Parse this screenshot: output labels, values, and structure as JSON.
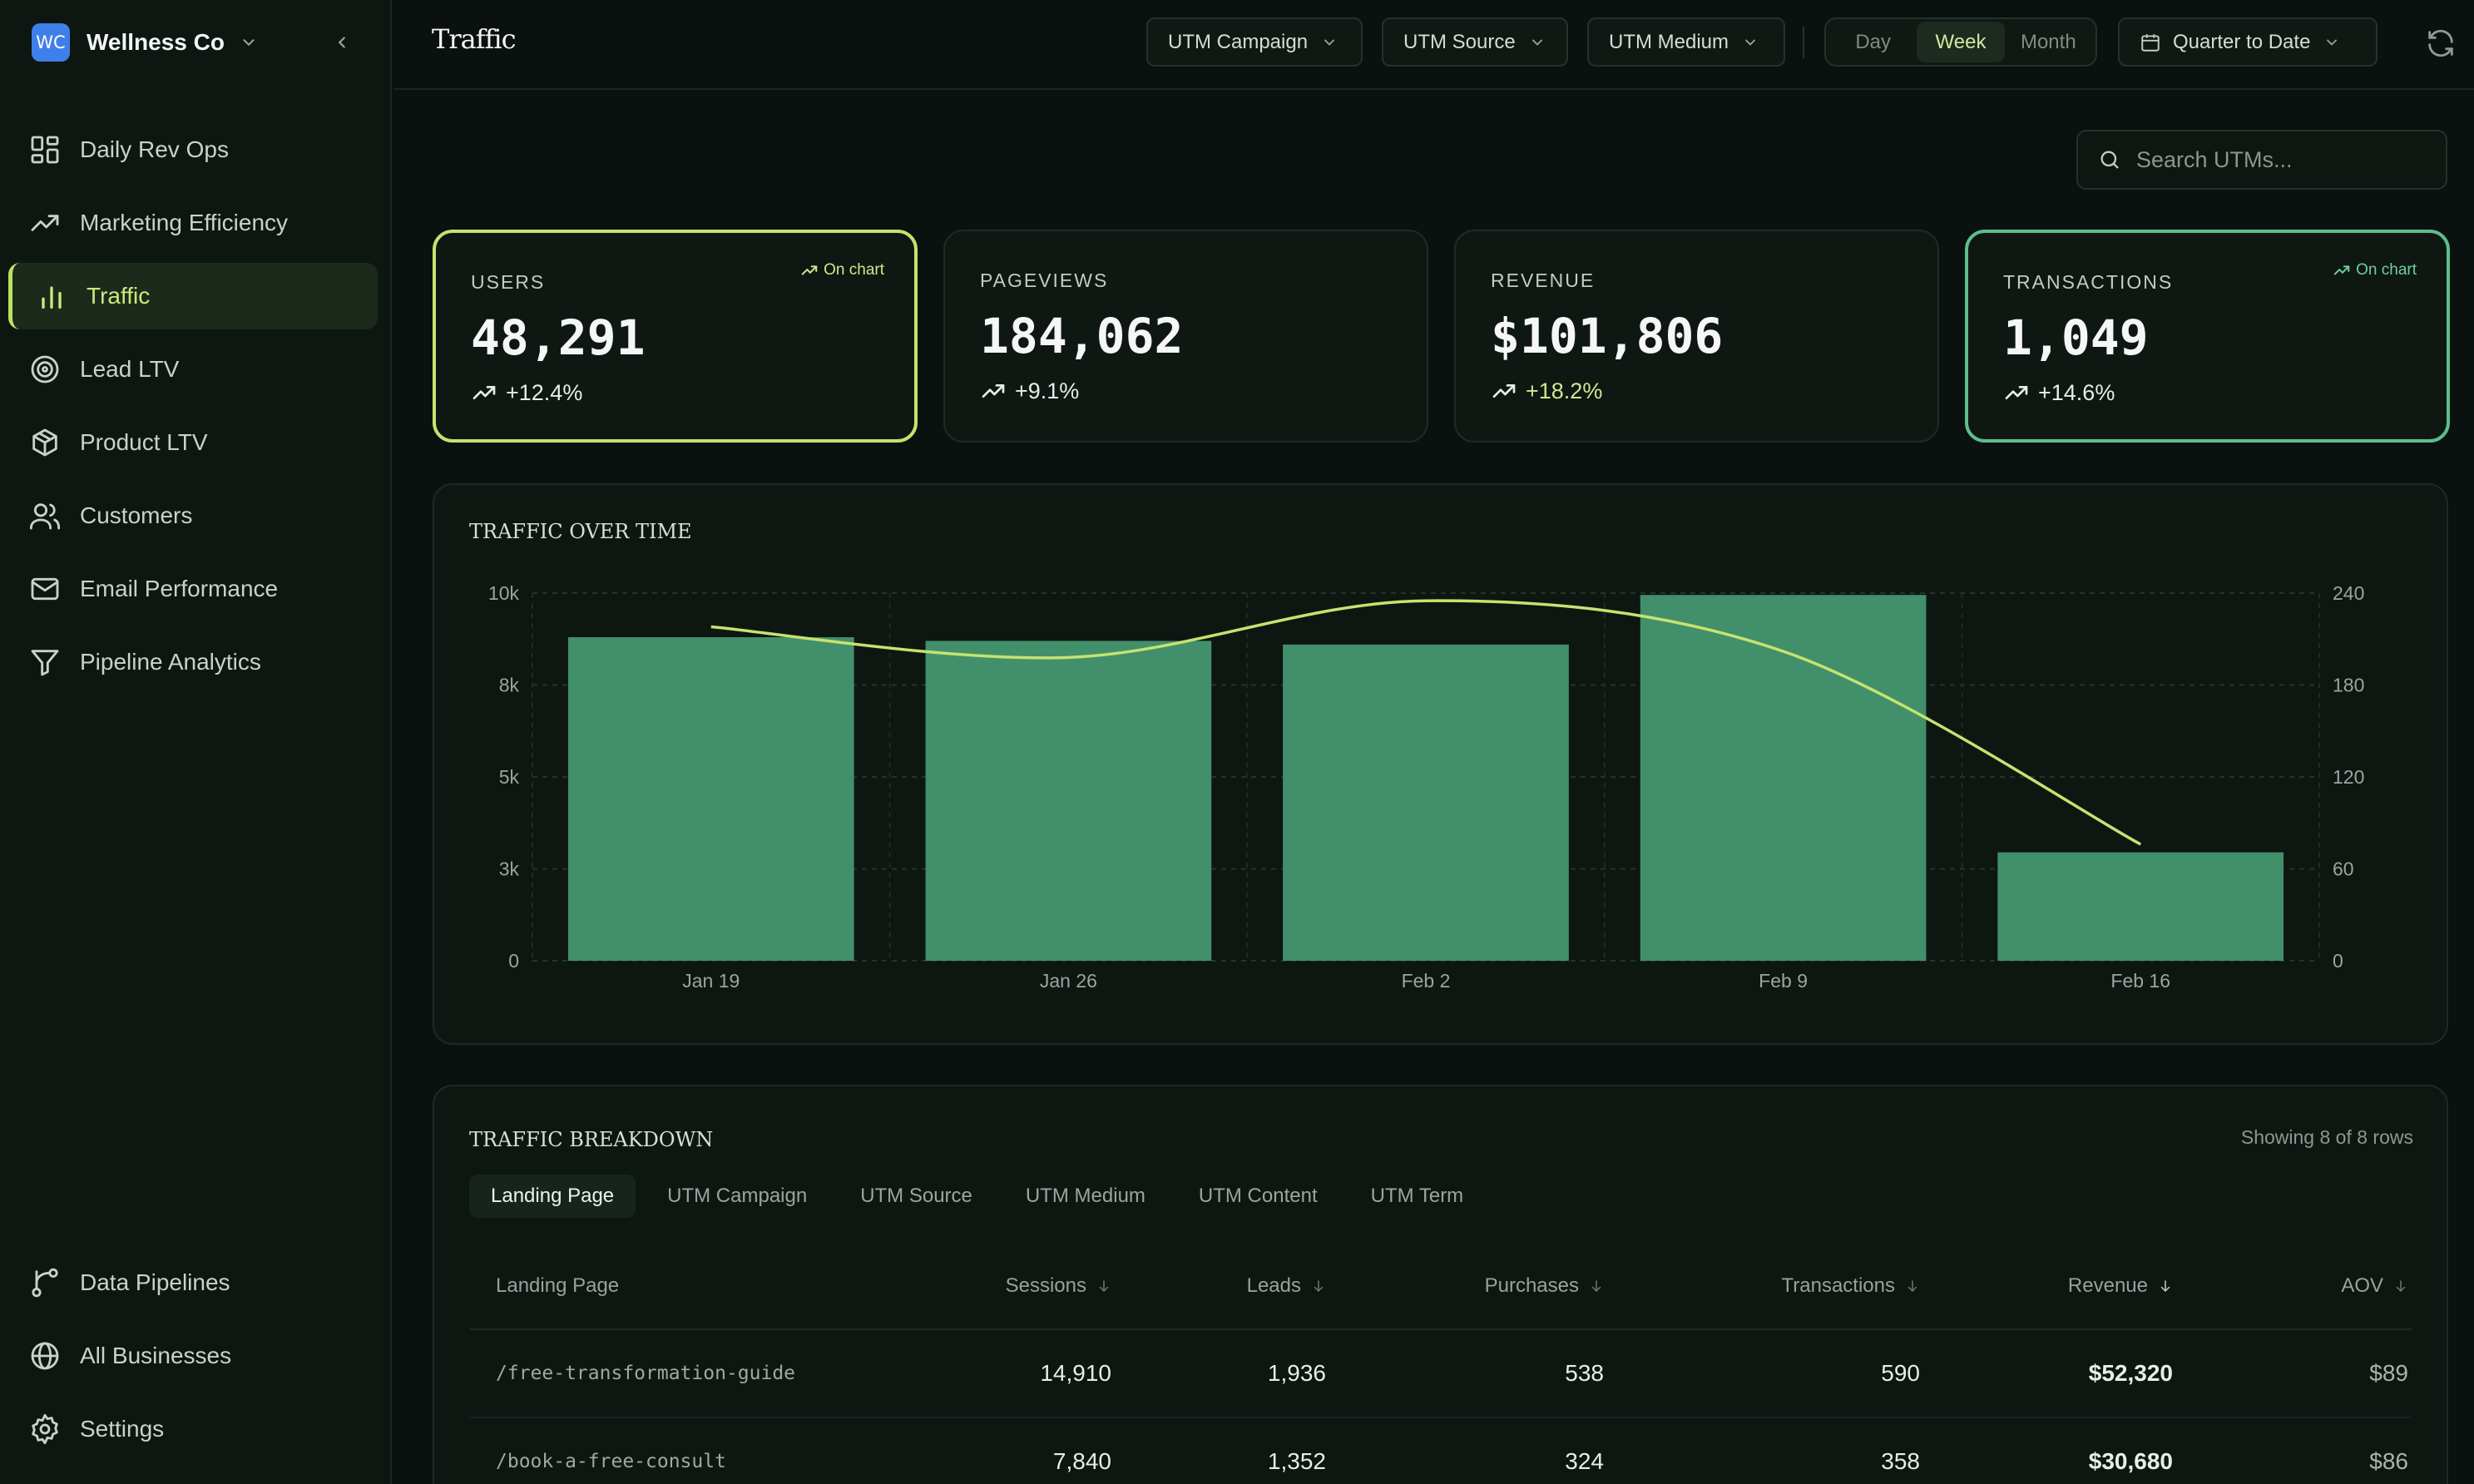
{
  "brand": {
    "logo_text": "WC",
    "name": "Wellness Co"
  },
  "nav": [
    {
      "label": "Daily Rev Ops",
      "icon": "grid-icon"
    },
    {
      "label": "Marketing Efficiency",
      "icon": "trend-icon"
    },
    {
      "label": "Traffic",
      "icon": "bar-chart-icon",
      "active": true
    },
    {
      "label": "Lead LTV",
      "icon": "target-icon"
    },
    {
      "label": "Product LTV",
      "icon": "box-icon"
    },
    {
      "label": "Customers",
      "icon": "users-icon"
    },
    {
      "label": "Email Performance",
      "icon": "mail-icon"
    },
    {
      "label": "Pipeline Analytics",
      "icon": "funnel-icon"
    }
  ],
  "nav_bottom": [
    {
      "label": "Data Pipelines",
      "icon": "pipeline-icon"
    },
    {
      "label": "All Businesses",
      "icon": "globe-icon"
    },
    {
      "label": "Settings",
      "icon": "gear-icon"
    }
  ],
  "header": {
    "title": "Traffic",
    "filters": [
      "UTM Campaign",
      "UTM Source",
      "UTM Medium"
    ],
    "granularity": {
      "options": [
        "Day",
        "Week",
        "Month"
      ],
      "selected": "Week"
    },
    "date_range": "Quarter to Date"
  },
  "search": {
    "placeholder": "Search UTMs..."
  },
  "metrics": [
    {
      "label": "USERS",
      "value": "48,291",
      "delta": "+12.4%",
      "on_chart": "On chart",
      "selected": "lime"
    },
    {
      "label": "PAGEVIEWS",
      "value": "184,062",
      "delta": "+9.1%",
      "on_chart": "",
      "selected": ""
    },
    {
      "label": "REVENUE",
      "value": "$101,806",
      "delta": "+18.2%",
      "on_chart": "",
      "selected": ""
    },
    {
      "label": "TRANSACTIONS",
      "value": "1,049",
      "delta": "+14.6%",
      "on_chart": "On chart",
      "selected": "green"
    }
  ],
  "colors": {
    "bar": "#428f6b",
    "line": "#c5e36e",
    "lime": "#c5e36e",
    "green": "#5ebd8d",
    "delta_white": "#e8ede9",
    "delta_lime": "#cfe98c"
  },
  "chart_data": {
    "type": "bar",
    "title": "TRAFFIC OVER TIME",
    "categories": [
      "Jan 19",
      "Jan 26",
      "Feb 2",
      "Feb 9",
      "Feb 16"
    ],
    "y_ticks": [
      "10k",
      "8k",
      "5k",
      "3k",
      "0"
    ],
    "y2_ticks": [
      "240",
      "180",
      "120",
      "60",
      "0"
    ],
    "ylim": [
      0,
      10000
    ],
    "y2lim": [
      0,
      240
    ],
    "grid": true,
    "series": [
      {
        "type": "bar",
        "axis": "left",
        "values": [
          8800,
          8700,
          8600,
          9950,
          2950
        ]
      },
      {
        "type": "line",
        "axis": "right",
        "values": [
          218,
          198,
          235,
          202,
          76
        ]
      }
    ]
  },
  "breakdown": {
    "title": "TRAFFIC BREAKDOWN",
    "row_count": "Showing 8 of 8 rows",
    "tabs": [
      "Landing Page",
      "UTM Campaign",
      "UTM Source",
      "UTM Medium",
      "UTM Content",
      "UTM Term"
    ],
    "active_tab": "Landing Page",
    "columns": [
      "Landing Page",
      "Sessions",
      "Leads",
      "Purchases",
      "Transactions",
      "Revenue",
      "AOV"
    ],
    "rows": [
      [
        "/free-transformation-guide",
        "14,910",
        "1,936",
        "538",
        "590",
        "$52,320",
        "$89"
      ],
      [
        "/book-a-free-consult",
        "7,840",
        "1,352",
        "324",
        "358",
        "$30,680",
        "$86"
      ]
    ]
  }
}
